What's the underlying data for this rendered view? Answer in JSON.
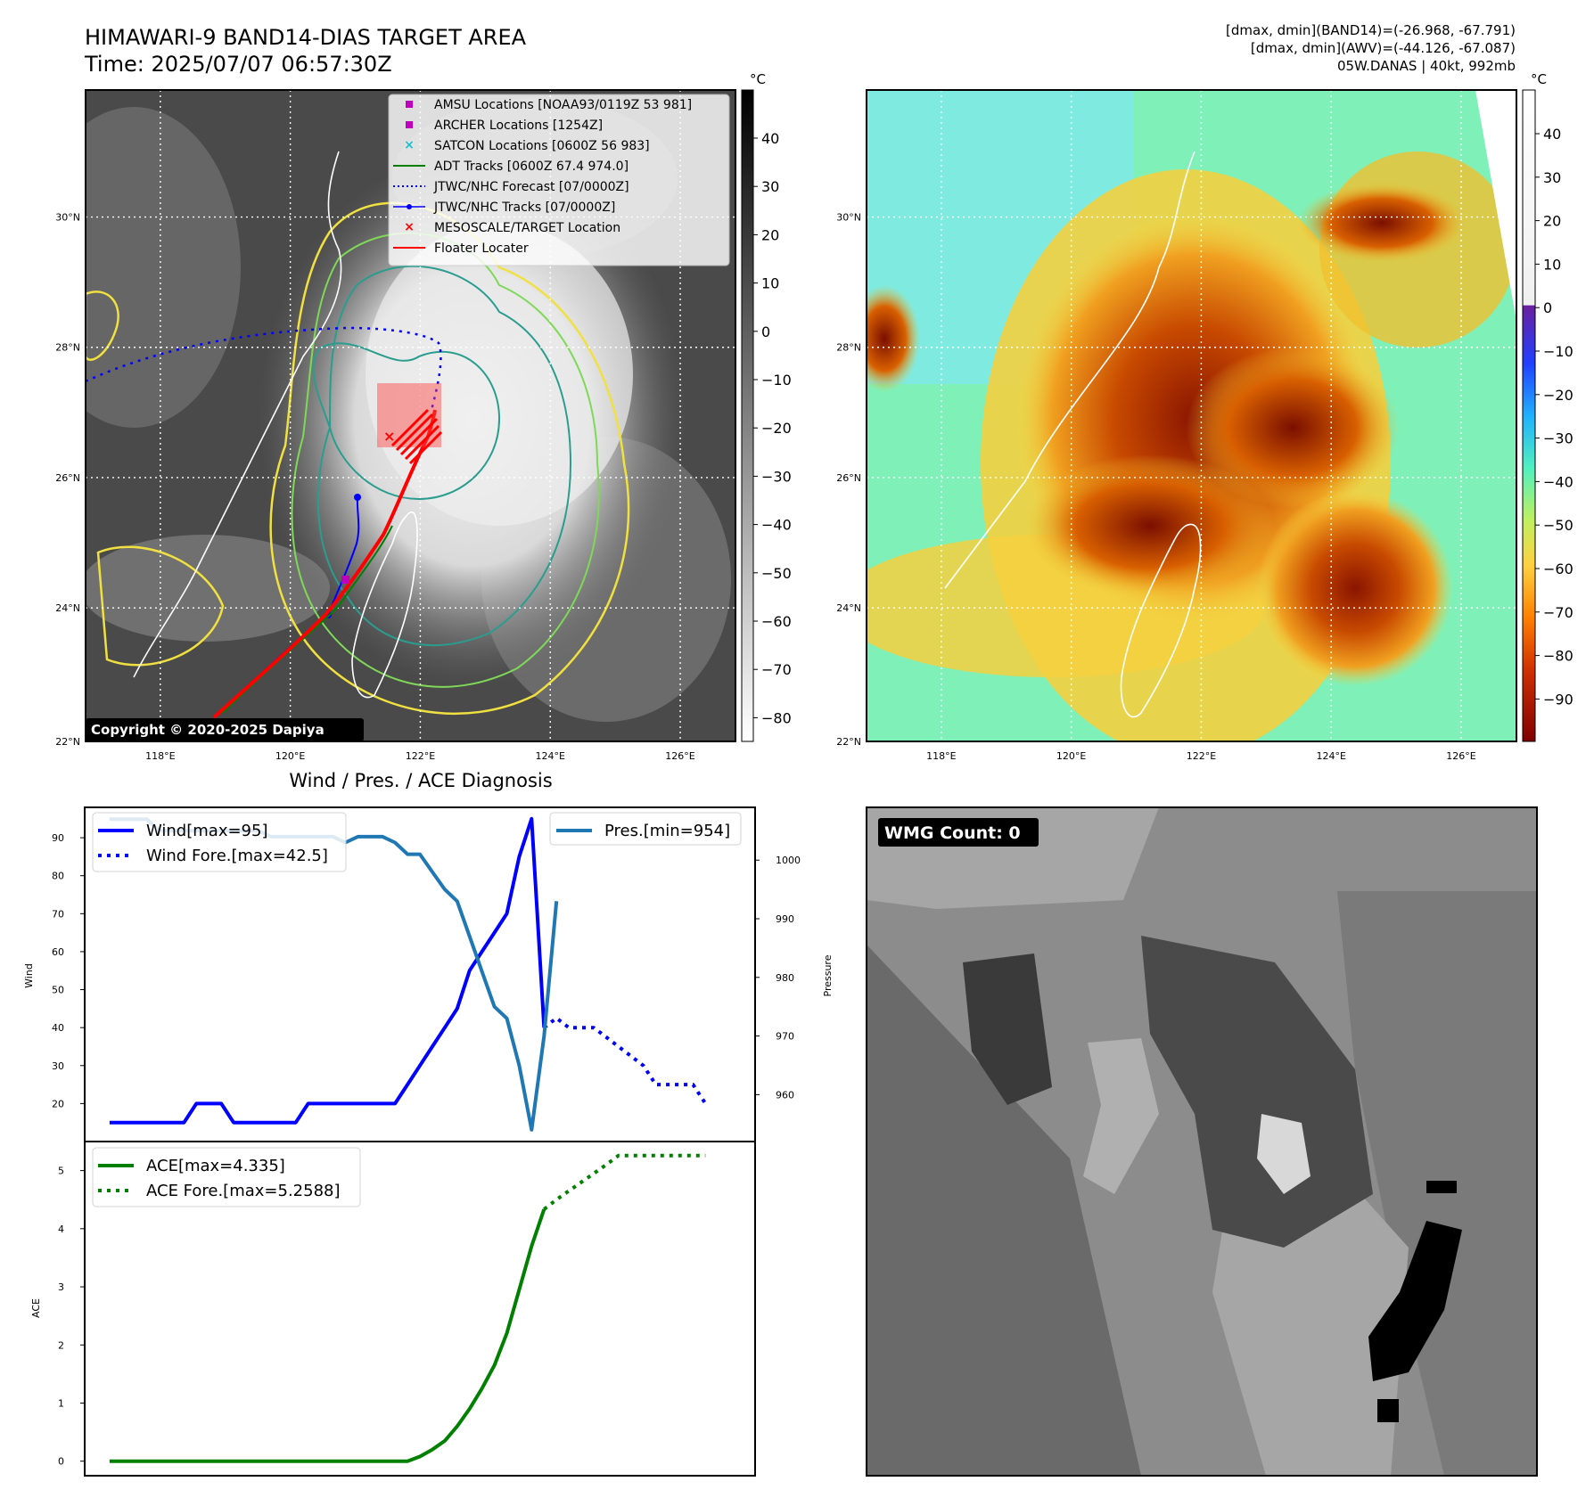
{
  "header": {
    "title_line1": "HIMAWARI-9 BAND14-DIAS TARGET AREA",
    "title_line2": "Time: 2025/07/07 06:57:30Z",
    "info_line1": "[dmax, dmin](BAND14)=(-26.968, -67.791)",
    "info_line2": "[dmax, dmin](AWV)=(-44.126, -67.087)",
    "info_line3": "05W.DANAS | 40kt, 992mb"
  },
  "map_ir": {
    "lat_labels": [
      "30°N",
      "28°N",
      "26°N",
      "24°N",
      "22°N"
    ],
    "lon_labels": [
      "118°E",
      "120°E",
      "122°E",
      "124°E",
      "126°E"
    ],
    "copyright": "Copyright © 2020-2025 Dapiya",
    "colorbar_unit": "°C",
    "colorbar_ticks": [
      "40",
      "30",
      "20",
      "10",
      "0",
      "−10",
      "−20",
      "−30",
      "−40",
      "−50",
      "−60",
      "−70",
      "−80"
    ],
    "legend": [
      {
        "label": "AMSU Locations [NOAA93/0119Z 53 981]",
        "marker": "square",
        "color": "#bf00bf"
      },
      {
        "label": "ARCHER Locations [1254Z]",
        "marker": "square",
        "color": "#bf00bf"
      },
      {
        "label": "SATCON Locations [0600Z 56 983]",
        "marker": "x",
        "color": "#17becf"
      },
      {
        "label": "ADT Tracks [0600Z 67.4 974.0]",
        "marker": "line",
        "color": "#008000"
      },
      {
        "label": "JTWC/NHC Forecast [07/0000Z]",
        "marker": "dotted",
        "color": "#0000ff"
      },
      {
        "label": "JTWC/NHC Tracks [07/0000Z]",
        "marker": "line-dot",
        "color": "#0000ff"
      },
      {
        "label": "MESOSCALE/TARGET Location",
        "marker": "x",
        "color": "#ff0000"
      },
      {
        "label": "Floater Locater",
        "marker": "line",
        "color": "#ff0000"
      }
    ]
  },
  "map_awv": {
    "lat_labels": [
      "30°N",
      "28°N",
      "26°N",
      "24°N",
      "22°N"
    ],
    "lon_labels": [
      "118°E",
      "120°E",
      "122°E",
      "124°E",
      "126°E"
    ],
    "colorbar_unit": "°C",
    "colorbar_ticks": [
      "40",
      "30",
      "20",
      "10",
      "0",
      "−10",
      "−20",
      "−30",
      "−40",
      "−50",
      "−60",
      "−70",
      "−80",
      "−90"
    ]
  },
  "wmg": {
    "label": "WMG Count: 0"
  },
  "chart_data": [
    {
      "type": "line",
      "title": "Wind / Pres. / ACE Diagnosis",
      "ylabel": "Wind",
      "y2label": "Pressure",
      "ylim": [
        10,
        98
      ],
      "y2lim": [
        952,
        1009
      ],
      "xlim": [
        -2,
        52
      ],
      "yticks": [
        "90",
        "80",
        "70",
        "60",
        "50",
        "40",
        "30",
        "20"
      ],
      "y2ticks": [
        "1000",
        "990",
        "980",
        "970",
        "960"
      ],
      "series": [
        {
          "name": "Wind[max=95]",
          "axis": "left",
          "style": "solid",
          "color": "#0000ff",
          "x": [
            0,
            1,
            2,
            3,
            4,
            5,
            6,
            7,
            8,
            9,
            10,
            11,
            12,
            13,
            14,
            15,
            16,
            17,
            18,
            19,
            20,
            21,
            22,
            23,
            24,
            25,
            26,
            27,
            28,
            29,
            30,
            31,
            32,
            33,
            34,
            35
          ],
          "values": [
            15,
            15,
            15,
            15,
            15,
            15,
            15,
            20,
            20,
            20,
            15,
            15,
            15,
            15,
            15,
            15,
            20,
            20,
            20,
            20,
            20,
            20,
            20,
            20,
            25,
            30,
            35,
            40,
            45,
            55,
            60,
            65,
            70,
            85,
            95,
            40
          ]
        },
        {
          "name": "Wind Fore.[max=42.5]",
          "axis": "left",
          "style": "dotted",
          "color": "#0000ff",
          "x": [
            35,
            36,
            37,
            38,
            39,
            40,
            41,
            42,
            43,
            44,
            45,
            46,
            47,
            48
          ],
          "values": [
            40,
            42.5,
            40,
            40,
            40,
            37.5,
            35,
            32.5,
            30,
            25,
            25,
            25,
            25,
            20
          ]
        },
        {
          "name": "Pres.[min=954]",
          "axis": "right",
          "style": "solid",
          "color": "#1f77b4",
          "x": [
            0,
            1,
            2,
            3,
            4,
            5,
            6,
            7,
            8,
            9,
            10,
            11,
            12,
            13,
            14,
            15,
            16,
            17,
            18,
            19,
            20,
            21,
            22,
            23,
            24,
            25,
            26,
            27,
            28,
            29,
            30,
            31,
            32,
            33,
            34,
            35,
            36
          ],
          "values": [
            1007,
            1007,
            1007,
            1007,
            1005,
            1005,
            1005,
            1005,
            1005,
            1005,
            1005,
            1005,
            1005,
            1004,
            1004,
            1004,
            1004,
            1004,
            1004,
            1003,
            1004,
            1004,
            1004,
            1003,
            1001,
            1001,
            998,
            995,
            993,
            987,
            981,
            975,
            973,
            965,
            954,
            970,
            993
          ]
        }
      ]
    },
    {
      "type": "line",
      "ylabel": "ACE",
      "ylim": [
        -0.25,
        5.5
      ],
      "xlim": [
        -2,
        52
      ],
      "yticks": [
        "5",
        "4",
        "3",
        "2",
        "1",
        "0"
      ],
      "series": [
        {
          "name": "ACE[max=4.335]",
          "style": "solid",
          "color": "#008000",
          "x": [
            0,
            2,
            4,
            6,
            8,
            10,
            12,
            14,
            16,
            18,
            20,
            22,
            23,
            24,
            25,
            26,
            27,
            28,
            29,
            30,
            31,
            32,
            33,
            34,
            35
          ],
          "values": [
            0,
            0,
            0,
            0,
            0,
            0,
            0,
            0,
            0,
            0,
            0,
            0,
            0,
            0,
            0.08,
            0.2,
            0.35,
            0.6,
            0.9,
            1.25,
            1.65,
            2.2,
            2.95,
            3.7,
            4.335
          ]
        },
        {
          "name": "ACE Fore.[max=5.2588]",
          "style": "dotted",
          "color": "#008000",
          "x": [
            35,
            36,
            37,
            38,
            39,
            40,
            41,
            42,
            43,
            44,
            45,
            46,
            47,
            48
          ],
          "values": [
            4.335,
            4.5,
            4.65,
            4.8,
            4.95,
            5.1,
            5.2588,
            5.2588,
            5.2588,
            5.2588,
            5.2588,
            5.2588,
            5.2588,
            5.2588
          ]
        }
      ]
    }
  ]
}
